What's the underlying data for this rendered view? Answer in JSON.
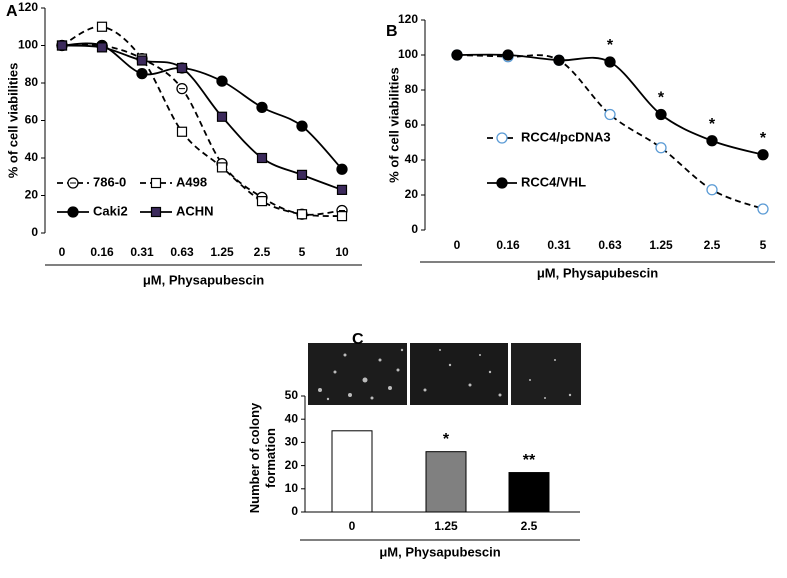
{
  "chart_data": [
    {
      "type": "line",
      "panel": "A",
      "x_label": "μM, Physapubescin",
      "y_label": "% of cell viabilities",
      "categories": [
        "0",
        "0.16",
        "0.31",
        "0.63",
        "1.25",
        "2.5",
        "5",
        "10"
      ],
      "ylim": [
        0,
        120
      ],
      "yticks": [
        0,
        20,
        40,
        60,
        80,
        100,
        120
      ],
      "grid": false,
      "series": [
        {
          "name": "786-0",
          "color": "#000000",
          "marker": "circle-minus",
          "dash": true,
          "values": [
            100,
            100,
            93,
            77,
            37,
            19,
            10,
            12
          ]
        },
        {
          "name": "A498",
          "color": "#000000",
          "marker": "square-open",
          "dash": true,
          "values": [
            100,
            110,
            93,
            54,
            35,
            17,
            10,
            9
          ]
        },
        {
          "name": "Caki2",
          "color": "#000000",
          "marker": "circle",
          "dash": false,
          "values": [
            100,
            100,
            85,
            88,
            81,
            67,
            57,
            34
          ]
        },
        {
          "name": "ACHN",
          "color": "#000000",
          "marker": "square",
          "marker_color": "#3c2a5c",
          "dash": false,
          "values": [
            100,
            99,
            92,
            88,
            62,
            40,
            31,
            23
          ]
        }
      ]
    },
    {
      "type": "line",
      "panel": "B",
      "x_label": "μM, Physapubescin",
      "y_label": "% of cell viabilities",
      "categories": [
        "0",
        "0.16",
        "0.31",
        "0.63",
        "1.25",
        "2.5",
        "5"
      ],
      "ylim": [
        0,
        120
      ],
      "yticks": [
        0,
        20,
        40,
        60,
        80,
        100,
        120
      ],
      "grid": false,
      "series": [
        {
          "name": "RCC4/pcDNA3",
          "color": "#000000",
          "marker": "circle-open",
          "marker_color": "#5b9bd5",
          "dash": true,
          "values": [
            100,
            99,
            97,
            66,
            47,
            23,
            12
          ]
        },
        {
          "name": "RCC4/VHL",
          "color": "#000000",
          "marker": "circle",
          "dash": false,
          "values": [
            100,
            100,
            97,
            96,
            66,
            51,
            43
          ],
          "significance": [
            null,
            null,
            null,
            "*",
            "*",
            "*",
            "*"
          ]
        }
      ]
    },
    {
      "type": "bar",
      "panel": "C",
      "x_label": "μM, Physapubescin",
      "y_label": "Number of colony formation",
      "categories": [
        "0",
        "1.25",
        "2.5"
      ],
      "values": [
        35,
        26,
        17
      ],
      "colors": [
        "#ffffff",
        "#808080",
        "#000000"
      ],
      "significance": [
        null,
        "*",
        "**"
      ],
      "ylim": [
        0,
        50
      ],
      "yticks": [
        0,
        10,
        20,
        30,
        40,
        50
      ],
      "grid": false
    }
  ]
}
